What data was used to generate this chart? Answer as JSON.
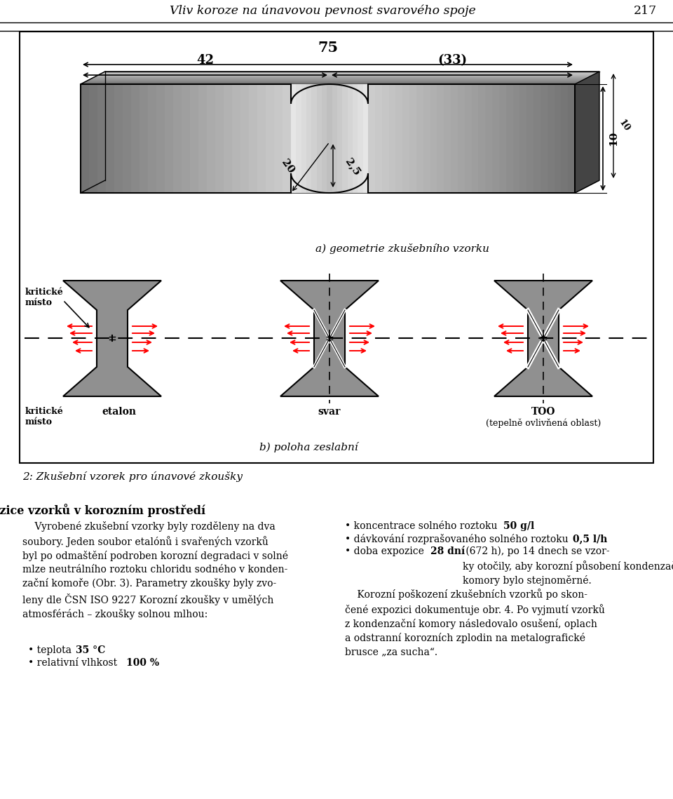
{
  "page_title": "Vliv koroze na únavovou pevnost svarového spoje",
  "page_number": "217",
  "background_color": "#ffffff",
  "subcaption_a": "a) geometrie zkušebního vzorku",
  "subcaption_b": "b) poloha zeslabní",
  "label_kritcke_misto_top": "kritické\nmísto",
  "label_kritcke_misto_bottom": "kritické\nmísto",
  "label_etalon": "etalon",
  "label_svar": "svar",
  "label_too": "TOO",
  "label_too2": "(tepelně ovlivňená oblast)",
  "dim_75": "75",
  "dim_42": "42",
  "dim_33": "(33)",
  "dim_20": "20",
  "dim_25": "2,5",
  "dim_10_right": "10",
  "dim_10_bottom": "10",
  "fig_caption": "2: Zkušební vzorek pro únavové zkoušky",
  "section_title": "Expozice vzorků v korozním prostředí",
  "left_para": "    Vyrobené zkušební vzorky byly rozděleny na dva\nsoubory. Jeden soubor etalónů i svařených vzorků\nbyl po odmaštění podroben korozní degradaci v solné\nmlze neutrálního roztoku chloridu sodného v konden-\nzační komoře (Obr. 3). Parametry zkoušky byly zvo-\nleny dle ČSN ISO 9227 Korozní zkoušky v umělých\natmosférách – zkoušky solnou mlhou:",
  "bullet_teplota_pre": "• teplota ",
  "bullet_teplota_bold": "35 °C",
  "bullet_vlhkost_pre": "• relativní vlhkost ",
  "bullet_vlhkost_bold": "100 %",
  "right_b1_pre": "• koncentrace solného roztoku ",
  "right_b1_bold": "50 g/l",
  "right_b2_pre": "• dávkování rozprašovaného solného roztoku ",
  "right_b2_bold": "0,5 l/h",
  "right_b3_pre": "• doba expozice ",
  "right_b3_bold": "28 dní",
  "right_b3_post": " (672 h), po 14 dnech se vzor-\nky otočily, aby korozní působení kondenzační\nkomory bylo stejnoměrné.",
  "right_para2_line1": "    Korozní poškození zkušebních vzorků po skon-",
  "right_para2_line2": "čené expozici dokumentuje obr. 4. Po vyjmutí vzorků",
  "right_para2_line3": "z kondenzační komory následovalo osušení, oplach",
  "right_para2_line4": "a odstranní korozních zplodin na metalografické",
  "right_para2_line5": "brusce „za sucha“."
}
